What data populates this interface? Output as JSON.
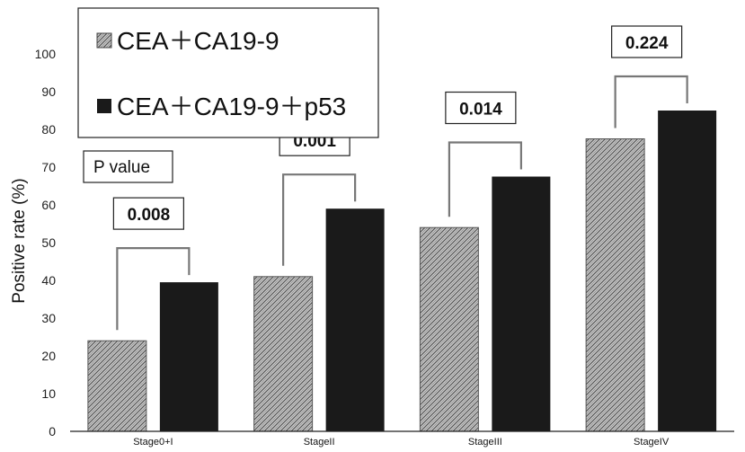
{
  "chart_data": {
    "type": "bar",
    "ylabel": "Positive rate (%)",
    "xlabel": "",
    "ylim": [
      0,
      100
    ],
    "yticks": [
      0,
      10,
      20,
      30,
      40,
      50,
      60,
      70,
      80,
      90,
      100
    ],
    "categories": [
      "Stage0+I",
      "StageII",
      "StageIII",
      "StageIV"
    ],
    "series": [
      {
        "name": "CEA＋CA19-9",
        "values": [
          24,
          41,
          54,
          77.5
        ]
      },
      {
        "name": "CEA＋CA19-9＋p53",
        "values": [
          39.5,
          59,
          67.5,
          85
        ]
      }
    ],
    "p_values": [
      "0.008",
      "0.001",
      "0.014",
      "0.224"
    ],
    "p_value_label": "P value",
    "grid": false,
    "legend": "top-left"
  },
  "colors": {
    "series1_pattern_fill": "#c8c8c8",
    "series1_pattern_stroke": "#555555",
    "series2_fill": "#1a1a1a",
    "bracket": "#777777"
  }
}
